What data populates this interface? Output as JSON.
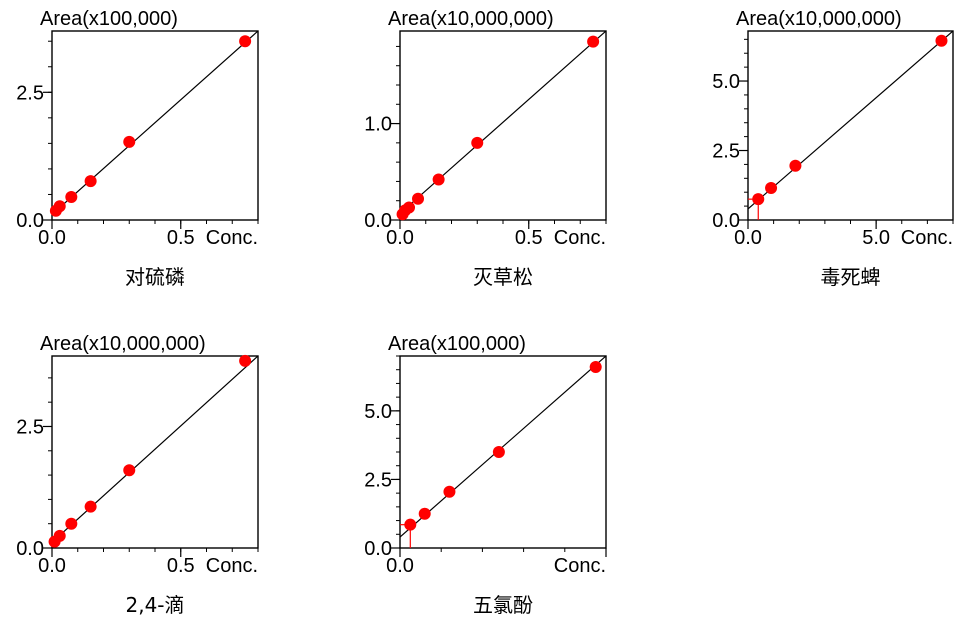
{
  "chart_data": [
    {
      "type": "scatter",
      "title": "Area(x100,000)",
      "xlabel": "Conc.",
      "caption": "对硫磷",
      "xlim": [
        0,
        0.8
      ],
      "ylim": [
        0,
        3.7
      ],
      "xticks": [
        {
          "value": 0.0,
          "label": "0.0"
        },
        {
          "value": 0.5,
          "label": "0.5"
        }
      ],
      "yticks": [
        {
          "value": 0.0,
          "label": "0.0"
        },
        {
          "value": 2.5,
          "label": "2.5"
        }
      ],
      "points": [
        [
          0.015,
          0.18
        ],
        [
          0.03,
          0.27
        ],
        [
          0.075,
          0.45
        ],
        [
          0.15,
          0.76
        ],
        [
          0.3,
          1.53
        ],
        [
          0.75,
          3.5
        ]
      ],
      "fit": [
        [
          -0.02,
          0.02
        ],
        [
          0.8,
          3.7
        ]
      ]
    },
    {
      "type": "scatter",
      "title": "Area(x10,000,000)",
      "xlabel": "Conc.",
      "caption": "灭草松",
      "xlim": [
        0,
        0.8
      ],
      "ylim": [
        0,
        1.96
      ],
      "xticks": [
        {
          "value": 0.0,
          "label": "0.0"
        },
        {
          "value": 0.5,
          "label": "0.5"
        }
      ],
      "yticks": [
        {
          "value": 0.0,
          "label": "0.0"
        },
        {
          "value": 1.0,
          "label": "1.0"
        }
      ],
      "points": [
        [
          0.01,
          0.06
        ],
        [
          0.02,
          0.1
        ],
        [
          0.035,
          0.13
        ],
        [
          0.07,
          0.22
        ],
        [
          0.15,
          0.42
        ],
        [
          0.3,
          0.8
        ],
        [
          0.75,
          1.85
        ]
      ],
      "fit": [
        [
          -0.02,
          0.02
        ],
        [
          0.8,
          1.96
        ]
      ]
    },
    {
      "type": "scatter",
      "title": "Area(x10,000,000)",
      "xlabel": "Conc.",
      "caption": "毒死蜱",
      "xlim": [
        0,
        8.0
      ],
      "ylim": [
        0,
        6.8
      ],
      "xticks": [
        {
          "value": 0.0,
          "label": "0.0"
        },
        {
          "value": 5.0,
          "label": "5.0"
        }
      ],
      "yticks": [
        {
          "value": 0.0,
          "label": "0.0"
        },
        {
          "value": 2.5,
          "label": "2.5"
        },
        {
          "value": 5.0,
          "label": "5.0"
        }
      ],
      "points": [
        [
          0.4,
          0.75
        ],
        [
          0.9,
          1.15
        ],
        [
          1.85,
          1.95
        ],
        [
          7.55,
          6.45
        ]
      ],
      "fit": [
        [
          0.0,
          0.4
        ],
        [
          8.0,
          6.8
        ]
      ],
      "marker": {
        "x": 0.4,
        "y": 0.75
      }
    },
    {
      "type": "scatter",
      "title": "Area(x10,000,000)",
      "xlabel": "Conc.",
      "caption": "2,4-滴",
      "xlim": [
        0,
        0.8
      ],
      "ylim": [
        0,
        3.95
      ],
      "xticks": [
        {
          "value": 0.0,
          "label": "0.0"
        },
        {
          "value": 0.5,
          "label": "0.5"
        }
      ],
      "yticks": [
        {
          "value": 0.0,
          "label": "0.0"
        },
        {
          "value": 2.5,
          "label": "2.5"
        }
      ],
      "points": [
        [
          0.01,
          0.13
        ],
        [
          0.03,
          0.25
        ],
        [
          0.075,
          0.5
        ],
        [
          0.15,
          0.85
        ],
        [
          0.3,
          1.6
        ],
        [
          0.75,
          3.85
        ]
      ],
      "fit": [
        [
          -0.02,
          0.02
        ],
        [
          0.8,
          3.95
        ]
      ]
    },
    {
      "type": "scatter",
      "title": "Area(x100,000)",
      "xlabel": "Conc.",
      "caption": "五氯酚",
      "xlim": [
        0,
        1.0
      ],
      "ylim": [
        0,
        7.0
      ],
      "xticks": [
        {
          "value": 0.0,
          "label": "0.0"
        },
        {
          "value": 1.0,
          "label": ""
        }
      ],
      "yticks": [
        {
          "value": 0.0,
          "label": "0.0"
        },
        {
          "value": 2.5,
          "label": "2.5"
        },
        {
          "value": 5.0,
          "label": "5.0"
        }
      ],
      "points": [
        [
          0.05,
          0.85
        ],
        [
          0.12,
          1.25
        ],
        [
          0.24,
          2.05
        ],
        [
          0.48,
          3.5
        ],
        [
          0.95,
          6.6
        ]
      ],
      "fit": [
        [
          0.0,
          0.4
        ],
        [
          1.0,
          7.0
        ]
      ],
      "marker": {
        "x": 0.05,
        "y": 0.85
      }
    }
  ],
  "colors": {
    "point": "#ff0000",
    "fit_line": "#000000",
    "axis": "#000000",
    "marker_line": "#ff0000"
  }
}
